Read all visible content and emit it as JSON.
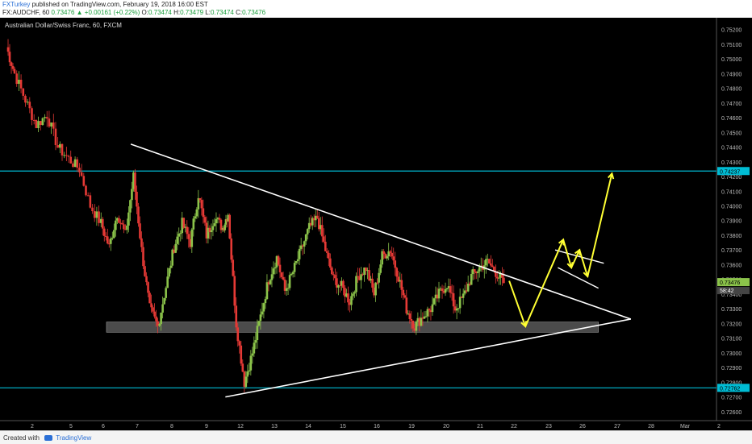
{
  "header": {
    "user": "FXTurkey",
    "published": "published on TradingView.com, February 19, 2018 16:00 EST",
    "symbol": "FX:AUDCHF, 60",
    "price": "0.73476",
    "change": "▲ +0.00161 (+0.22%)",
    "o_label": "O:",
    "o_value": "0.73474",
    "h_label": "H:",
    "h_value": "0.73479",
    "l_label": "L:",
    "l_value": "0.73474",
    "c_label": "C:",
    "c_value": "0.73476"
  },
  "chart_title": "Australian Dollar/Swiss Franc, 60, FXCM",
  "footer": {
    "created_with": "Created with",
    "brand": "TradingView"
  },
  "colors": {
    "background": "#000000",
    "up": "#8bc34a",
    "down": "#e53935",
    "trendline": "#ffffff",
    "level": "#00bcd4",
    "arrow": "#ffff33",
    "zone": "#888888"
  },
  "chart_data": {
    "type": "line",
    "title": "Australian Dollar/Swiss Franc, 60, FXCM",
    "ylim": [
      0.7255,
      0.7528
    ],
    "x_tick_labels": [
      "2",
      "5",
      "6",
      "7",
      "8",
      "9",
      "12",
      "13",
      "14",
      "15",
      "16",
      "19",
      "20",
      "21",
      "22",
      "23",
      "26",
      "27",
      "28",
      "Mar",
      "2"
    ],
    "y_tick_labels": [
      "0.75200",
      "0.75100",
      "0.75000",
      "0.74900",
      "0.74800",
      "0.74700",
      "0.74600",
      "0.74500",
      "0.74400",
      "0.74300",
      "0.74200",
      "0.74100",
      "0.74000",
      "0.73900",
      "0.73800",
      "0.73700",
      "0.73600",
      "0.73500",
      "0.73400",
      "0.73300",
      "0.73200",
      "0.73100",
      "0.73000",
      "0.72900",
      "0.72800",
      "0.72700",
      "0.72600"
    ],
    "level_labels": [
      {
        "value": 0.74237,
        "label": "0.74237"
      },
      {
        "value": 0.72762,
        "label": "0.72762"
      }
    ],
    "current_price_label": "0.73476",
    "countdown_label": "58:42",
    "current_price": 0.73476,
    "zone": [
      0.7314,
      0.7321
    ],
    "close_path_day_price": [
      [
        1.0,
        0.7508
      ],
      [
        1.3,
        0.749
      ],
      [
        1.7,
        0.7472
      ],
      [
        2.1,
        0.7455
      ],
      [
        2.5,
        0.7462
      ],
      [
        2.9,
        0.744
      ],
      [
        3.3,
        0.7432
      ],
      [
        3.7,
        0.7425
      ],
      [
        4.1,
        0.74
      ],
      [
        4.5,
        0.7388
      ],
      [
        4.8,
        0.7372
      ],
      [
        5.1,
        0.7395
      ],
      [
        5.4,
        0.738
      ],
      [
        5.7,
        0.742
      ],
      [
        6.0,
        0.737
      ],
      [
        6.3,
        0.733
      ],
      [
        6.6,
        0.7318
      ],
      [
        6.9,
        0.7345
      ],
      [
        7.2,
        0.7372
      ],
      [
        7.5,
        0.7388
      ],
      [
        7.8,
        0.7375
      ],
      [
        8.1,
        0.7408
      ],
      [
        8.4,
        0.738
      ],
      [
        8.7,
        0.7392
      ],
      [
        9.0,
        0.7385
      ],
      [
        9.2,
        0.7395
      ],
      [
        9.5,
        0.732
      ],
      [
        9.8,
        0.728
      ],
      [
        10.1,
        0.73
      ],
      [
        10.4,
        0.7325
      ],
      [
        10.7,
        0.735
      ],
      [
        11.0,
        0.7365
      ],
      [
        11.3,
        0.7342
      ],
      [
        11.6,
        0.7355
      ],
      [
        11.9,
        0.737
      ],
      [
        12.2,
        0.7385
      ],
      [
        12.5,
        0.7392
      ],
      [
        12.8,
        0.737
      ],
      [
        13.1,
        0.735
      ],
      [
        13.4,
        0.7345
      ],
      [
        13.7,
        0.7335
      ],
      [
        14.0,
        0.7352
      ],
      [
        14.3,
        0.7358
      ],
      [
        14.6,
        0.734
      ],
      [
        14.9,
        0.7366
      ],
      [
        15.2,
        0.737
      ],
      [
        15.5,
        0.7352
      ],
      [
        15.8,
        0.733
      ],
      [
        16.1,
        0.7318
      ],
      [
        16.4,
        0.7325
      ],
      [
        16.7,
        0.733
      ],
      [
        17.0,
        0.734
      ],
      [
        17.3,
        0.7347
      ],
      [
        17.6,
        0.733
      ],
      [
        17.9,
        0.7338
      ],
      [
        18.2,
        0.7352
      ],
      [
        18.5,
        0.7358
      ],
      [
        18.8,
        0.7362
      ],
      [
        19.1,
        0.7355
      ],
      [
        19.4,
        0.73476
      ]
    ],
    "trendlines_day_price": [
      {
        "from": [
          5.6,
          0.7442
        ],
        "to": [
          24.1,
          0.7323
        ]
      },
      {
        "from": [
          9.1,
          0.727
        ],
        "to": [
          24.1,
          0.7323
        ]
      }
    ],
    "projection_day_price": [
      {
        "type": "path",
        "points": [
          [
            19.6,
            0.7349
          ],
          [
            20.2,
            0.7318
          ],
          [
            21.6,
            0.7377
          ],
          [
            21.9,
            0.7358
          ],
          [
            22.2,
            0.737
          ],
          [
            22.5,
            0.7352
          ],
          [
            23.4,
            0.7422
          ]
        ]
      }
    ]
  }
}
